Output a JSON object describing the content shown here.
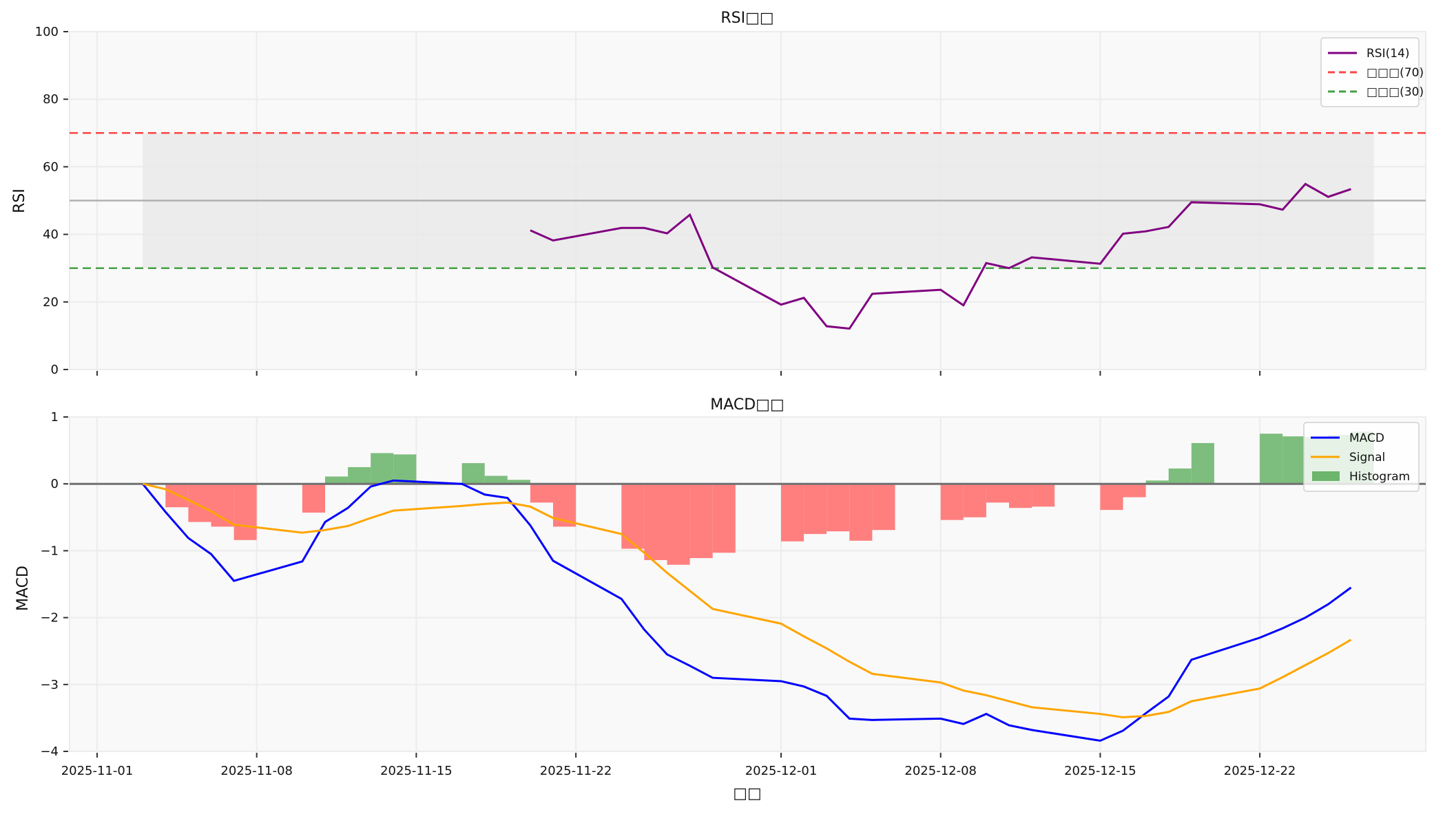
{
  "chart_data": [
    {
      "type": "line",
      "title": "RSI□□",
      "xlabel": "",
      "ylabel": "RSI",
      "ylim": [
        0,
        100
      ],
      "yticks": [
        0,
        20,
        40,
        60,
        80,
        100
      ],
      "grid": true,
      "legend_position": "upper right",
      "legend": [
        "RSI(14)",
        "□□□(70)",
        "□□□(30)"
      ],
      "reference_lines": [
        {
          "name": "□□□(70)",
          "y": 70,
          "color": "#ff4444",
          "style": "dashed"
        },
        {
          "name": "□□□(30)",
          "y": 30,
          "color": "#44a044",
          "style": "dashed"
        },
        {
          "name": "midline",
          "y": 50,
          "color": "#b0b0b0",
          "style": "solid"
        }
      ],
      "shaded_band": {
        "y0": 30,
        "y1": 70,
        "x0": "2025-11-03",
        "x1": "2025-12-27",
        "color": "#e6e6e6"
      },
      "series": [
        {
          "name": "RSI(14)",
          "color": "#800080",
          "x": [
            "2025-11-20",
            "2025-11-21",
            "2025-11-24",
            "2025-11-25",
            "2025-11-26",
            "2025-11-27",
            "2025-11-28",
            "2025-12-01",
            "2025-12-02",
            "2025-12-03",
            "2025-12-04",
            "2025-12-05",
            "2025-12-08",
            "2025-12-09",
            "2025-12-10",
            "2025-12-11",
            "2025-12-12",
            "2025-12-15",
            "2025-12-16",
            "2025-12-17",
            "2025-12-18",
            "2025-12-19",
            "2025-12-22",
            "2025-12-23",
            "2025-12-24",
            "2025-12-25",
            "2025-12-26"
          ],
          "values": [
            41.2,
            38.2,
            41.9,
            41.9,
            40.3,
            45.8,
            30.2,
            19.2,
            21.2,
            12.8,
            12.1,
            22.4,
            23.6,
            19.0,
            31.5,
            30.0,
            33.2,
            31.3,
            40.2,
            40.9,
            42.2,
            49.5,
            48.9,
            47.3,
            54.9,
            51.1,
            53.4
          ]
        }
      ]
    },
    {
      "type": "line",
      "title": "MACD□□",
      "xlabel": "□□",
      "ylabel": "MACD",
      "ylim": [
        -4,
        1
      ],
      "yticks": [
        -4,
        -3,
        -2,
        -1,
        0,
        1
      ],
      "xticks": [
        "2025-11-01",
        "2025-11-08",
        "2025-11-15",
        "2025-11-22",
        "2025-12-01",
        "2025-12-08",
        "2025-12-15",
        "2025-12-22"
      ],
      "grid": true,
      "legend_position": "upper right",
      "legend": [
        "MACD",
        "Signal",
        "Histogram"
      ],
      "x": [
        "2025-11-03",
        "2025-11-04",
        "2025-11-05",
        "2025-11-06",
        "2025-11-07",
        "2025-11-10",
        "2025-11-11",
        "2025-11-12",
        "2025-11-13",
        "2025-11-14",
        "2025-11-17",
        "2025-11-18",
        "2025-11-19",
        "2025-11-20",
        "2025-11-21",
        "2025-11-24",
        "2025-11-25",
        "2025-11-26",
        "2025-11-27",
        "2025-11-28",
        "2025-12-01",
        "2025-12-02",
        "2025-12-03",
        "2025-12-04",
        "2025-12-05",
        "2025-12-08",
        "2025-12-09",
        "2025-12-10",
        "2025-12-11",
        "2025-12-12",
        "2025-12-15",
        "2025-12-16",
        "2025-12-17",
        "2025-12-18",
        "2025-12-19",
        "2025-12-22",
        "2025-12-23",
        "2025-12-24",
        "2025-12-25",
        "2025-12-26"
      ],
      "series": [
        {
          "name": "MACD",
          "color": "#0000ff",
          "values": [
            0.0,
            -0.42,
            -0.81,
            -1.05,
            -1.45,
            -1.16,
            -0.57,
            -0.36,
            -0.04,
            0.05,
            0.0,
            -0.16,
            -0.21,
            -0.62,
            -1.15,
            -1.72,
            -2.18,
            -2.55,
            -2.72,
            -2.9,
            -2.95,
            -3.03,
            -3.17,
            -3.51,
            -3.53,
            -3.51,
            -3.59,
            -3.44,
            -3.61,
            -3.68,
            -3.84,
            -3.69,
            -3.43,
            -3.18,
            -2.63,
            -2.3,
            -2.16,
            -2.0,
            -1.8,
            -1.55
          ]
        },
        {
          "name": "Signal",
          "color": "#ffa500",
          "values": [
            0.0,
            -0.08,
            -0.24,
            -0.41,
            -0.61,
            -0.73,
            -0.69,
            -0.63,
            -0.51,
            -0.4,
            -0.33,
            -0.3,
            -0.28,
            -0.34,
            -0.51,
            -0.75,
            -1.03,
            -1.33,
            -1.6,
            -1.87,
            -2.09,
            -2.28,
            -2.46,
            -2.66,
            -2.84,
            -2.97,
            -3.09,
            -3.16,
            -3.25,
            -3.34,
            -3.44,
            -3.49,
            -3.47,
            -3.41,
            -3.25,
            -3.06,
            -2.89,
            -2.71,
            -2.53,
            -2.33
          ]
        },
        {
          "name": "Histogram",
          "color_pos": "#7dbd7d",
          "color_neg": "#ff7f7f",
          "values": [
            0.0,
            -0.35,
            -0.57,
            -0.64,
            -0.84,
            -0.43,
            0.11,
            0.25,
            0.46,
            0.44,
            0.31,
            0.12,
            0.06,
            -0.28,
            -0.64,
            -0.97,
            -1.14,
            -1.21,
            -1.11,
            -1.03,
            -0.86,
            -0.75,
            -0.71,
            -0.85,
            -0.69,
            -0.54,
            -0.5,
            -0.28,
            -0.36,
            -0.34,
            -0.39,
            -0.2,
            0.05,
            0.23,
            0.61,
            0.75,
            0.71,
            0.7,
            0.73,
            0.78
          ]
        }
      ]
    }
  ],
  "rsi_panel": {
    "title": "RSI□□",
    "ylabel": "RSI",
    "legend": [
      {
        "label": "RSI(14)",
        "color": "#800080",
        "style": "solid"
      },
      {
        "label": "□□□(70)",
        "color": "#ff4444",
        "style": "dashed"
      },
      {
        "label": "□□□(30)",
        "color": "#44a044",
        "style": "dashed"
      }
    ]
  },
  "macd_panel": {
    "title": "MACD□□",
    "ylabel": "MACD",
    "xlabel": "□□",
    "legend": [
      {
        "label": "MACD",
        "color": "#0000ff",
        "style": "solid"
      },
      {
        "label": "Signal",
        "color": "#ffa500",
        "style": "solid"
      },
      {
        "label": "Histogram",
        "color": "#6cb56c",
        "style": "patch"
      }
    ]
  }
}
